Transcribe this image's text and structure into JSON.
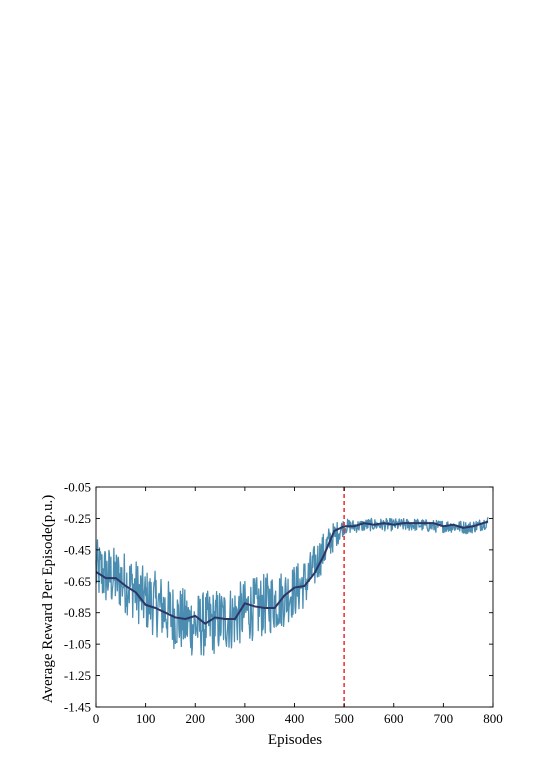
{
  "chart_data": {
    "type": "line",
    "title": "",
    "xlabel": "Episodes",
    "ylabel": "Average Reward Per Episode(p.u.)",
    "xlim": [
      0,
      800
    ],
    "ylim": [
      -1.45,
      -0.05
    ],
    "xticks": [
      "0",
      "100",
      "200",
      "300",
      "400",
      "500",
      "600",
      "700",
      "800"
    ],
    "yticks": [
      "-0.05",
      "-0.25",
      "-0.45",
      "-0.65",
      "-0.85",
      "-1.05",
      "-1.25",
      "-1.45"
    ],
    "grid": false,
    "legend": "none",
    "vline": {
      "x": 500,
      "color": "#e8393d",
      "style": "dashed"
    },
    "colors": {
      "raw": "#4a8db0",
      "smoothed": "#2d3565"
    },
    "series": [
      {
        "kind": "raw",
        "style": "noisy per-episode reward",
        "x": [
          0,
          25,
          50,
          75,
          100,
          125,
          150,
          175,
          200,
          225,
          250,
          275,
          300,
          325,
          350,
          375,
          400,
          425,
          450,
          475,
          500,
          525,
          550,
          575,
          600,
          625,
          650,
          675,
          700,
          725,
          750,
          775,
          790
        ],
        "center": [
          -0.58,
          -0.62,
          -0.64,
          -0.69,
          -0.77,
          -0.8,
          -0.86,
          -0.9,
          -0.93,
          -0.92,
          -0.9,
          -0.88,
          -0.84,
          -0.82,
          -0.79,
          -0.76,
          -0.71,
          -0.65,
          -0.5,
          -0.38,
          -0.3,
          -0.3,
          -0.29,
          -0.29,
          -0.29,
          -0.29,
          -0.29,
          -0.3,
          -0.3,
          -0.3,
          -0.31,
          -0.29,
          -0.27
        ],
        "amplitude": [
          0.2,
          0.2,
          0.2,
          0.2,
          0.2,
          0.21,
          0.21,
          0.21,
          0.21,
          0.21,
          0.21,
          0.21,
          0.2,
          0.2,
          0.2,
          0.19,
          0.17,
          0.16,
          0.13,
          0.1,
          0.05,
          0.04,
          0.04,
          0.04,
          0.04,
          0.04,
          0.04,
          0.04,
          0.04,
          0.04,
          0.04,
          0.04,
          0.04
        ]
      },
      {
        "kind": "smoothed",
        "style": "moving average",
        "x": [
          0,
          20,
          40,
          60,
          80,
          100,
          120,
          140,
          160,
          180,
          200,
          220,
          240,
          260,
          280,
          300,
          320,
          340,
          360,
          380,
          400,
          420,
          440,
          460,
          480,
          500,
          520,
          540,
          560,
          580,
          600,
          620,
          640,
          660,
          680,
          700,
          720,
          740,
          760,
          780,
          790
        ],
        "y": [
          -0.59,
          -0.63,
          -0.63,
          -0.68,
          -0.72,
          -0.8,
          -0.82,
          -0.85,
          -0.88,
          -0.89,
          -0.87,
          -0.92,
          -0.88,
          -0.89,
          -0.89,
          -0.79,
          -0.81,
          -0.82,
          -0.82,
          -0.74,
          -0.69,
          -0.68,
          -0.6,
          -0.48,
          -0.33,
          -0.3,
          -0.3,
          -0.28,
          -0.29,
          -0.28,
          -0.29,
          -0.28,
          -0.28,
          -0.28,
          -0.28,
          -0.3,
          -0.29,
          -0.31,
          -0.3,
          -0.28,
          -0.27
        ]
      }
    ]
  }
}
